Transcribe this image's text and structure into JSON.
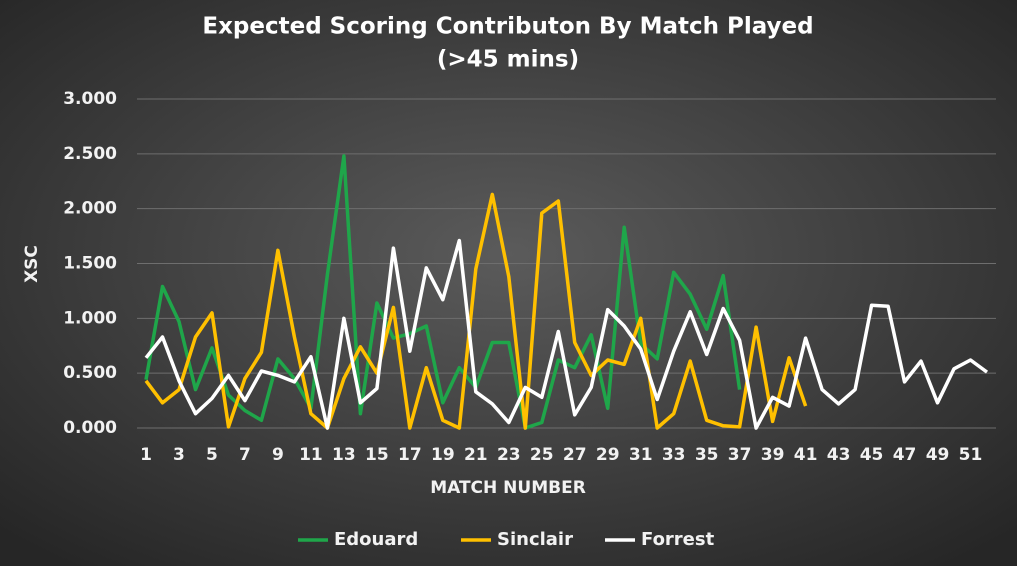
{
  "chart_data": {
    "type": "line",
    "title": "Expected Scoring Contributon By Match Played",
    "subtitle": "(>45 mins)",
    "x_label": "MATCH NUMBER",
    "y_label": "XSC",
    "categories": [
      "1",
      null,
      "3",
      null,
      "5",
      null,
      "7",
      null,
      "9",
      null,
      "11",
      null,
      "13",
      null,
      "15",
      null,
      "17",
      null,
      "19",
      null,
      "21",
      null,
      "23",
      null,
      "25",
      null,
      "27",
      null,
      "29",
      null,
      "31",
      null,
      "33",
      null,
      "35",
      null,
      "37",
      null,
      "39",
      null,
      "41",
      null,
      "43",
      null,
      "45",
      null,
      "47",
      null,
      "49",
      null,
      "51",
      null
    ],
    "ylim": [
      0,
      3
    ],
    "yticks": [
      {
        "value": 0,
        "label": "0.000"
      },
      {
        "value": 0.5,
        "label": "0.500"
      },
      {
        "value": 1,
        "label": "1.000"
      },
      {
        "value": 1.5,
        "label": "1.500"
      },
      {
        "value": 2,
        "label": "2.000"
      },
      {
        "value": 2.5,
        "label": "2.500"
      },
      {
        "value": 3,
        "label": "3.000"
      }
    ],
    "grid": true,
    "legend": "bottom",
    "series": [
      {
        "name": "Edouard",
        "color": "#1fa64a",
        "values": [
          0.44,
          1.29,
          0.97,
          0.35,
          0.73,
          0.3,
          0.16,
          0.07,
          0.63,
          0.45,
          0.18,
          1.4,
          2.48,
          0.13,
          1.14,
          0.82,
          0.86,
          0.93,
          0.23,
          0.55,
          0.37,
          0.78,
          0.78,
          0.0,
          0.05,
          0.62,
          0.55,
          0.85,
          0.18,
          1.83,
          0.77,
          0.63,
          1.42,
          1.22,
          0.9,
          1.39,
          0.35,
          null,
          null,
          null,
          null,
          null,
          null,
          null,
          null,
          null,
          null,
          null,
          null,
          null,
          null,
          null
        ]
      },
      {
        "name": "Sinclair",
        "color": "#ffc000",
        "values": [
          0.43,
          0.23,
          0.35,
          0.83,
          1.05,
          0.01,
          0.45,
          0.69,
          1.62,
          0.83,
          0.13,
          0.0,
          0.45,
          0.74,
          0.5,
          1.1,
          0.0,
          0.55,
          0.07,
          0.0,
          1.45,
          2.13,
          1.38,
          0.0,
          1.96,
          2.07,
          0.78,
          0.48,
          0.62,
          0.58,
          1.0,
          0.0,
          0.13,
          0.61,
          0.07,
          0.02,
          0.01,
          0.92,
          0.06,
          0.64,
          0.2,
          null,
          null,
          null,
          null,
          null,
          null,
          null,
          null,
          null,
          null,
          null
        ]
      },
      {
        "name": "Forrest",
        "color": "#ffffff",
        "values": [
          0.64,
          0.83,
          0.43,
          0.13,
          0.27,
          0.48,
          0.25,
          0.52,
          0.48,
          0.42,
          0.65,
          0.0,
          1.0,
          0.23,
          0.36,
          1.64,
          0.7,
          1.46,
          1.17,
          1.71,
          0.33,
          0.22,
          0.05,
          0.37,
          0.28,
          0.88,
          0.12,
          0.37,
          1.08,
          0.93,
          0.72,
          0.26,
          0.7,
          1.06,
          0.67,
          1.09,
          0.8,
          0.0,
          0.28,
          0.2,
          0.82,
          0.35,
          0.22,
          0.35,
          1.12,
          1.11,
          0.42,
          0.61,
          0.23,
          0.54,
          0.62,
          0.51
        ]
      }
    ]
  }
}
